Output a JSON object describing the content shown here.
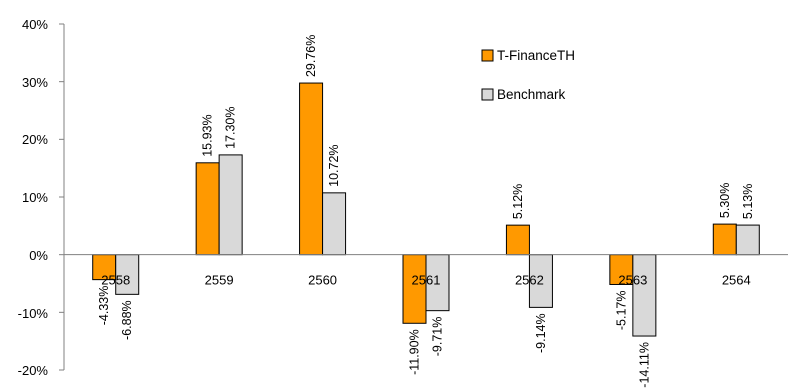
{
  "chart_data": {
    "type": "bar",
    "categories": [
      "2558",
      "2559",
      "2560",
      "2561",
      "2562",
      "2563",
      "2564"
    ],
    "series": [
      {
        "name": "T-FinanceTH",
        "values": [
          -4.33,
          15.93,
          29.76,
          -11.9,
          5.12,
          -5.17,
          5.3
        ],
        "labels": [
          "-4.33%",
          "15.93%",
          "29.76%",
          "-11.90%",
          "5.12%",
          "-5.17%",
          "5.30%"
        ]
      },
      {
        "name": "Benchmark",
        "values": [
          -6.88,
          17.3,
          10.72,
          -9.71,
          -9.14,
          -14.11,
          5.13
        ],
        "labels": [
          "-6.88%",
          "17.30%",
          "10.72%",
          "-9.71%",
          "-9.14%",
          "-14.11%",
          "5.13%"
        ]
      }
    ],
    "yticks": [
      "40%",
      "30%",
      "20%",
      "10%",
      "0%",
      "-10%",
      "-20%"
    ],
    "ylim": [
      -20,
      40
    ],
    "legend_position": "top-right",
    "colors": {
      "series_1": "#ff9900",
      "series_2": "#d9d9d9",
      "bar_border": "#000000",
      "axis": "#808080"
    }
  }
}
